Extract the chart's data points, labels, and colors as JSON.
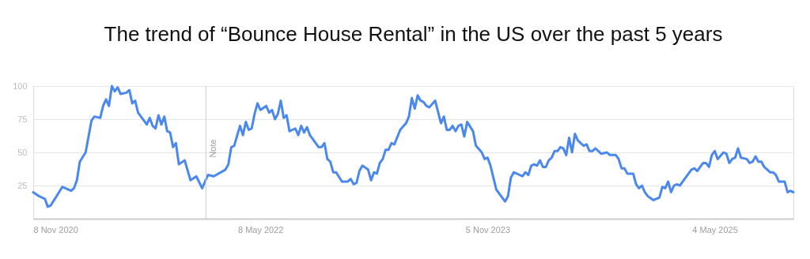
{
  "chart_data": {
    "type": "line",
    "title": "The trend of “Bounce House Rental” in the US over the past 5 years",
    "x": [
      "2020-11-08",
      "2020-11-22",
      "2020-12-06",
      "2020-12-13",
      "2020-12-20",
      "2021-01-03",
      "2021-01-17",
      "2021-02-07",
      "2021-02-14",
      "2021-02-21",
      "2021-02-28",
      "2021-03-14",
      "2021-03-28",
      "2021-04-04",
      "2021-04-18",
      "2021-04-25",
      "2021-05-02",
      "2021-05-09",
      "2021-05-16",
      "2021-05-23",
      "2021-05-30",
      "2021-06-06",
      "2021-06-20",
      "2021-06-27",
      "2021-07-04",
      "2021-07-11",
      "2021-07-18",
      "2021-07-25",
      "2021-08-08",
      "2021-08-15",
      "2021-08-22",
      "2021-08-29",
      "2021-09-05",
      "2021-09-12",
      "2021-09-19",
      "2021-09-26",
      "2021-10-03",
      "2021-10-10",
      "2021-10-17",
      "2021-10-24",
      "2021-11-07",
      "2021-11-21",
      "2021-12-05",
      "2021-12-19",
      "2021-12-26",
      "2022-01-02",
      "2022-01-16",
      "2022-02-13",
      "2022-02-20",
      "2022-02-27",
      "2022-03-06",
      "2022-03-20",
      "2022-03-27",
      "2022-04-03",
      "2022-04-10",
      "2022-04-17",
      "2022-04-24",
      "2022-05-01",
      "2022-05-08",
      "2022-05-22",
      "2022-05-29",
      "2022-06-05",
      "2022-06-12",
      "2022-06-19",
      "2022-06-26",
      "2022-07-03",
      "2022-07-10",
      "2022-07-17",
      "2022-07-31",
      "2022-08-07",
      "2022-08-14",
      "2022-08-21",
      "2022-08-28",
      "2022-09-04",
      "2022-09-25",
      "2022-10-02",
      "2022-10-09",
      "2022-10-16",
      "2022-10-23",
      "2022-10-30",
      "2022-11-06",
      "2022-11-20",
      "2022-12-04",
      "2022-12-11",
      "2022-12-18",
      "2022-12-25",
      "2023-01-01",
      "2023-01-08",
      "2023-01-22",
      "2023-01-29",
      "2023-02-05",
      "2023-02-12",
      "2023-02-19",
      "2023-02-26",
      "2023-03-05",
      "2023-03-12",
      "2023-03-19",
      "2023-03-26",
      "2023-04-09",
      "2023-04-23",
      "2023-04-30",
      "2023-05-07",
      "2023-05-14",
      "2023-05-21",
      "2023-05-28",
      "2023-06-04",
      "2023-06-11",
      "2023-06-18",
      "2023-07-02",
      "2023-07-16",
      "2023-07-23",
      "2023-07-30",
      "2023-08-06",
      "2023-08-13",
      "2023-08-20",
      "2023-08-27",
      "2023-09-03",
      "2023-09-10",
      "2023-09-17",
      "2023-10-01",
      "2023-10-08",
      "2023-10-22",
      "2023-10-29",
      "2023-11-05",
      "2023-11-12",
      "2023-11-26",
      "2023-12-03",
      "2023-12-17",
      "2023-12-24",
      "2023-12-31",
      "2024-01-07",
      "2024-01-28",
      "2024-02-04",
      "2024-02-11",
      "2024-02-18",
      "2024-02-25",
      "2024-03-03",
      "2024-03-10",
      "2024-03-17",
      "2024-03-24",
      "2024-03-31",
      "2024-04-07",
      "2024-04-14",
      "2024-04-21",
      "2024-04-28",
      "2024-05-05",
      "2024-05-12",
      "2024-05-19",
      "2024-05-26",
      "2024-06-02",
      "2024-06-09",
      "2024-06-23",
      "2024-06-30",
      "2024-07-07",
      "2024-07-14",
      "2024-07-21",
      "2024-08-04",
      "2024-08-18",
      "2024-08-25",
      "2024-09-08",
      "2024-09-15",
      "2024-09-22",
      "2024-09-29",
      "2024-10-06",
      "2024-10-20",
      "2024-10-27",
      "2024-11-03",
      "2024-11-10",
      "2024-11-17",
      "2024-11-24",
      "2024-12-08",
      "2024-12-22",
      "2024-12-29",
      "2025-01-05",
      "2025-01-12",
      "2025-01-19",
      "2025-01-26",
      "2025-02-02",
      "2025-02-09",
      "2025-02-23",
      "2025-03-09",
      "2025-03-16",
      "2025-03-23",
      "2025-03-30",
      "2025-04-06",
      "2025-04-13",
      "2025-04-20",
      "2025-04-27",
      "2025-05-04",
      "2025-05-11",
      "2025-05-25",
      "2025-06-01",
      "2025-06-08",
      "2025-06-15",
      "2025-06-22",
      "2025-06-29",
      "2025-07-06",
      "2025-07-20",
      "2025-07-27",
      "2025-08-03",
      "2025-08-10",
      "2025-08-17",
      "2025-08-24",
      "2025-08-31",
      "2025-09-14",
      "2025-09-21",
      "2025-09-28",
      "2025-10-05",
      "2025-10-19",
      "2025-10-26",
      "2025-11-02",
      "2025-11-09"
    ],
    "series": [
      {
        "color": "#4a88ee",
        "values": [
          20,
          17,
          15,
          9,
          10,
          17,
          24,
          21,
          23,
          29,
          43,
          50,
          74,
          77,
          76,
          85,
          90,
          85,
          100,
          96,
          99,
          94,
          95,
          97,
          87,
          89,
          80,
          77,
          71,
          76,
          70,
          68,
          78,
          71,
          77,
          66,
          65,
          54,
          57,
          41,
          44,
          29,
          32,
          23,
          28,
          33,
          32,
          37,
          41,
          54,
          55,
          70,
          63,
          73,
          67,
          68,
          79,
          87,
          82,
          85,
          80,
          82,
          75,
          79,
          89,
          76,
          78,
          66,
          68,
          63,
          70,
          65,
          69,
          63,
          54,
          54,
          57,
          45,
          43,
          35,
          35,
          28,
          28,
          30,
          26,
          27,
          36,
          40,
          37,
          29,
          35,
          34,
          42,
          45,
          52,
          52,
          57,
          56,
          67,
          72,
          77,
          91,
          83,
          93,
          89,
          88,
          85,
          84,
          89,
          72,
          77,
          67,
          67,
          70,
          66,
          70,
          71,
          62,
          73,
          66,
          55,
          50,
          45,
          46,
          40,
          22,
          19,
          13,
          17,
          31,
          35,
          32,
          35,
          33,
          40,
          41,
          40,
          44,
          39,
          39,
          44,
          46,
          51,
          51,
          54,
          53,
          48,
          61,
          50,
          64,
          59,
          55,
          56,
          51,
          51,
          53,
          49,
          50,
          48,
          48,
          45,
          38,
          38,
          34,
          34,
          26,
          23,
          25,
          20,
          17,
          14,
          16,
          24,
          23,
          28,
          20,
          25,
          26,
          25,
          31,
          37,
          38,
          36,
          39,
          42,
          42,
          39,
          48,
          51,
          45,
          50,
          49,
          42,
          45,
          46,
          53,
          46,
          45,
          42,
          43,
          47,
          43,
          43,
          39,
          35,
          35,
          33,
          28,
          28,
          20,
          21,
          20
        ]
      }
    ],
    "xlim": [
      "2020-11-08",
      "2025-11-09"
    ],
    "xticks": [
      {
        "value": "2020-11-08",
        "label": "8 Nov 2020"
      },
      {
        "value": "2022-05-08",
        "label": "8 May 2022"
      },
      {
        "value": "2023-11-05",
        "label": "5 Nov 2023"
      },
      {
        "value": "2025-05-04",
        "label": "4 May 2025"
      }
    ],
    "ylim": [
      0,
      100
    ],
    "yticks": [
      25,
      50,
      75,
      100
    ],
    "grid": "y",
    "line_style": "solid",
    "ref_lines": [
      {
        "axis": "x",
        "value": "2021-12-28",
        "label": "Note",
        "color": "#cccccc"
      }
    ]
  }
}
